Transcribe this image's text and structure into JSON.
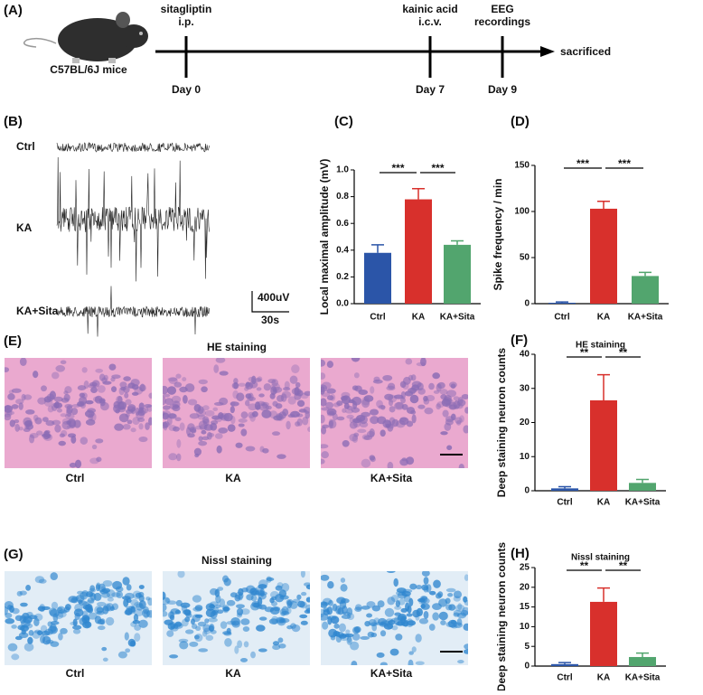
{
  "timeline": {
    "panel": "(A)",
    "strain": "C57BL/6J mice",
    "end": "sacrificed",
    "events": [
      {
        "above": [
          "sitagliptin",
          "i.p."
        ],
        "below": "Day 0"
      },
      {
        "above": [
          "kainic acid",
          "i.c.v."
        ],
        "below": "Day 7"
      },
      {
        "above": [
          "EEG",
          "recordings"
        ],
        "below": "Day 9"
      }
    ]
  },
  "eeg": {
    "panel": "(B)",
    "traces": [
      "Ctrl",
      "KA",
      "KA+Sita"
    ],
    "scale_y": "400uV",
    "scale_x": "30s"
  },
  "he": {
    "panel": "(E)",
    "title": "HE staining",
    "labels": [
      "Ctrl",
      "KA",
      "KA+Sita"
    ]
  },
  "nissl": {
    "panel": "(G)",
    "title": "Nissl staining",
    "labels": [
      "Ctrl",
      "KA",
      "KA+Sita"
    ]
  },
  "chart_data": [
    {
      "type": "bar",
      "panel": "(C)",
      "ylabel": "Local maximal amplitude (mV)",
      "categories": [
        "Ctrl",
        "KA",
        "KA+Sita"
      ],
      "values": [
        0.38,
        0.78,
        0.44
      ],
      "errors": [
        0.06,
        0.08,
        0.03
      ],
      "colors": [
        "#2b55a8",
        "#d8302c",
        "#52a56e"
      ],
      "ylim": [
        0,
        1
      ],
      "yticks": [
        {
          "value": 0,
          "label": "0.0"
        },
        0.2,
        0.4,
        0.6,
        0.8,
        {
          "value": 1,
          "label": "1.0"
        }
      ],
      "annotations": [
        "***",
        "***"
      ]
    },
    {
      "type": "bar",
      "panel": "(D)",
      "ylabel": "Spike frequency / min",
      "categories": [
        "Ctrl",
        "KA",
        "KA+Sita"
      ],
      "values": [
        1,
        103,
        30
      ],
      "errors": [
        0.8,
        8,
        4
      ],
      "colors": [
        "#2b55a8",
        "#d8302c",
        "#52a56e"
      ],
      "ylim": [
        0,
        150
      ],
      "yticks": [
        0,
        50,
        100,
        150
      ],
      "annotations": [
        "***",
        "***"
      ]
    },
    {
      "type": "bar",
      "panel": "(F)",
      "title": "HE staining",
      "ylabel": "Deep staining neuron counts",
      "categories": [
        "Ctrl",
        "KA",
        "KA+Sita"
      ],
      "values": [
        0.7,
        26.5,
        2.3
      ],
      "errors": [
        0.5,
        7.5,
        1
      ],
      "colors": [
        "#2b55a8",
        "#d8302c",
        "#52a56e"
      ],
      "ylim": [
        0,
        40
      ],
      "yticks": [
        0,
        10,
        20,
        30,
        40
      ],
      "annotations": [
        "**",
        "**"
      ]
    },
    {
      "type": "bar",
      "panel": "(H)",
      "title": "Nissl staining",
      "ylabel": "Deep staining neuron counts",
      "categories": [
        "Ctrl",
        "KA",
        "KA+Sita"
      ],
      "values": [
        0.5,
        16.3,
        2.3
      ],
      "errors": [
        0.4,
        3.5,
        1
      ],
      "colors": [
        "#2b55a8",
        "#d8302c",
        "#52a56e"
      ],
      "ylim": [
        0,
        25
      ],
      "yticks": [
        0,
        5,
        10,
        15,
        20,
        25
      ],
      "annotations": [
        "**",
        "**"
      ]
    }
  ]
}
